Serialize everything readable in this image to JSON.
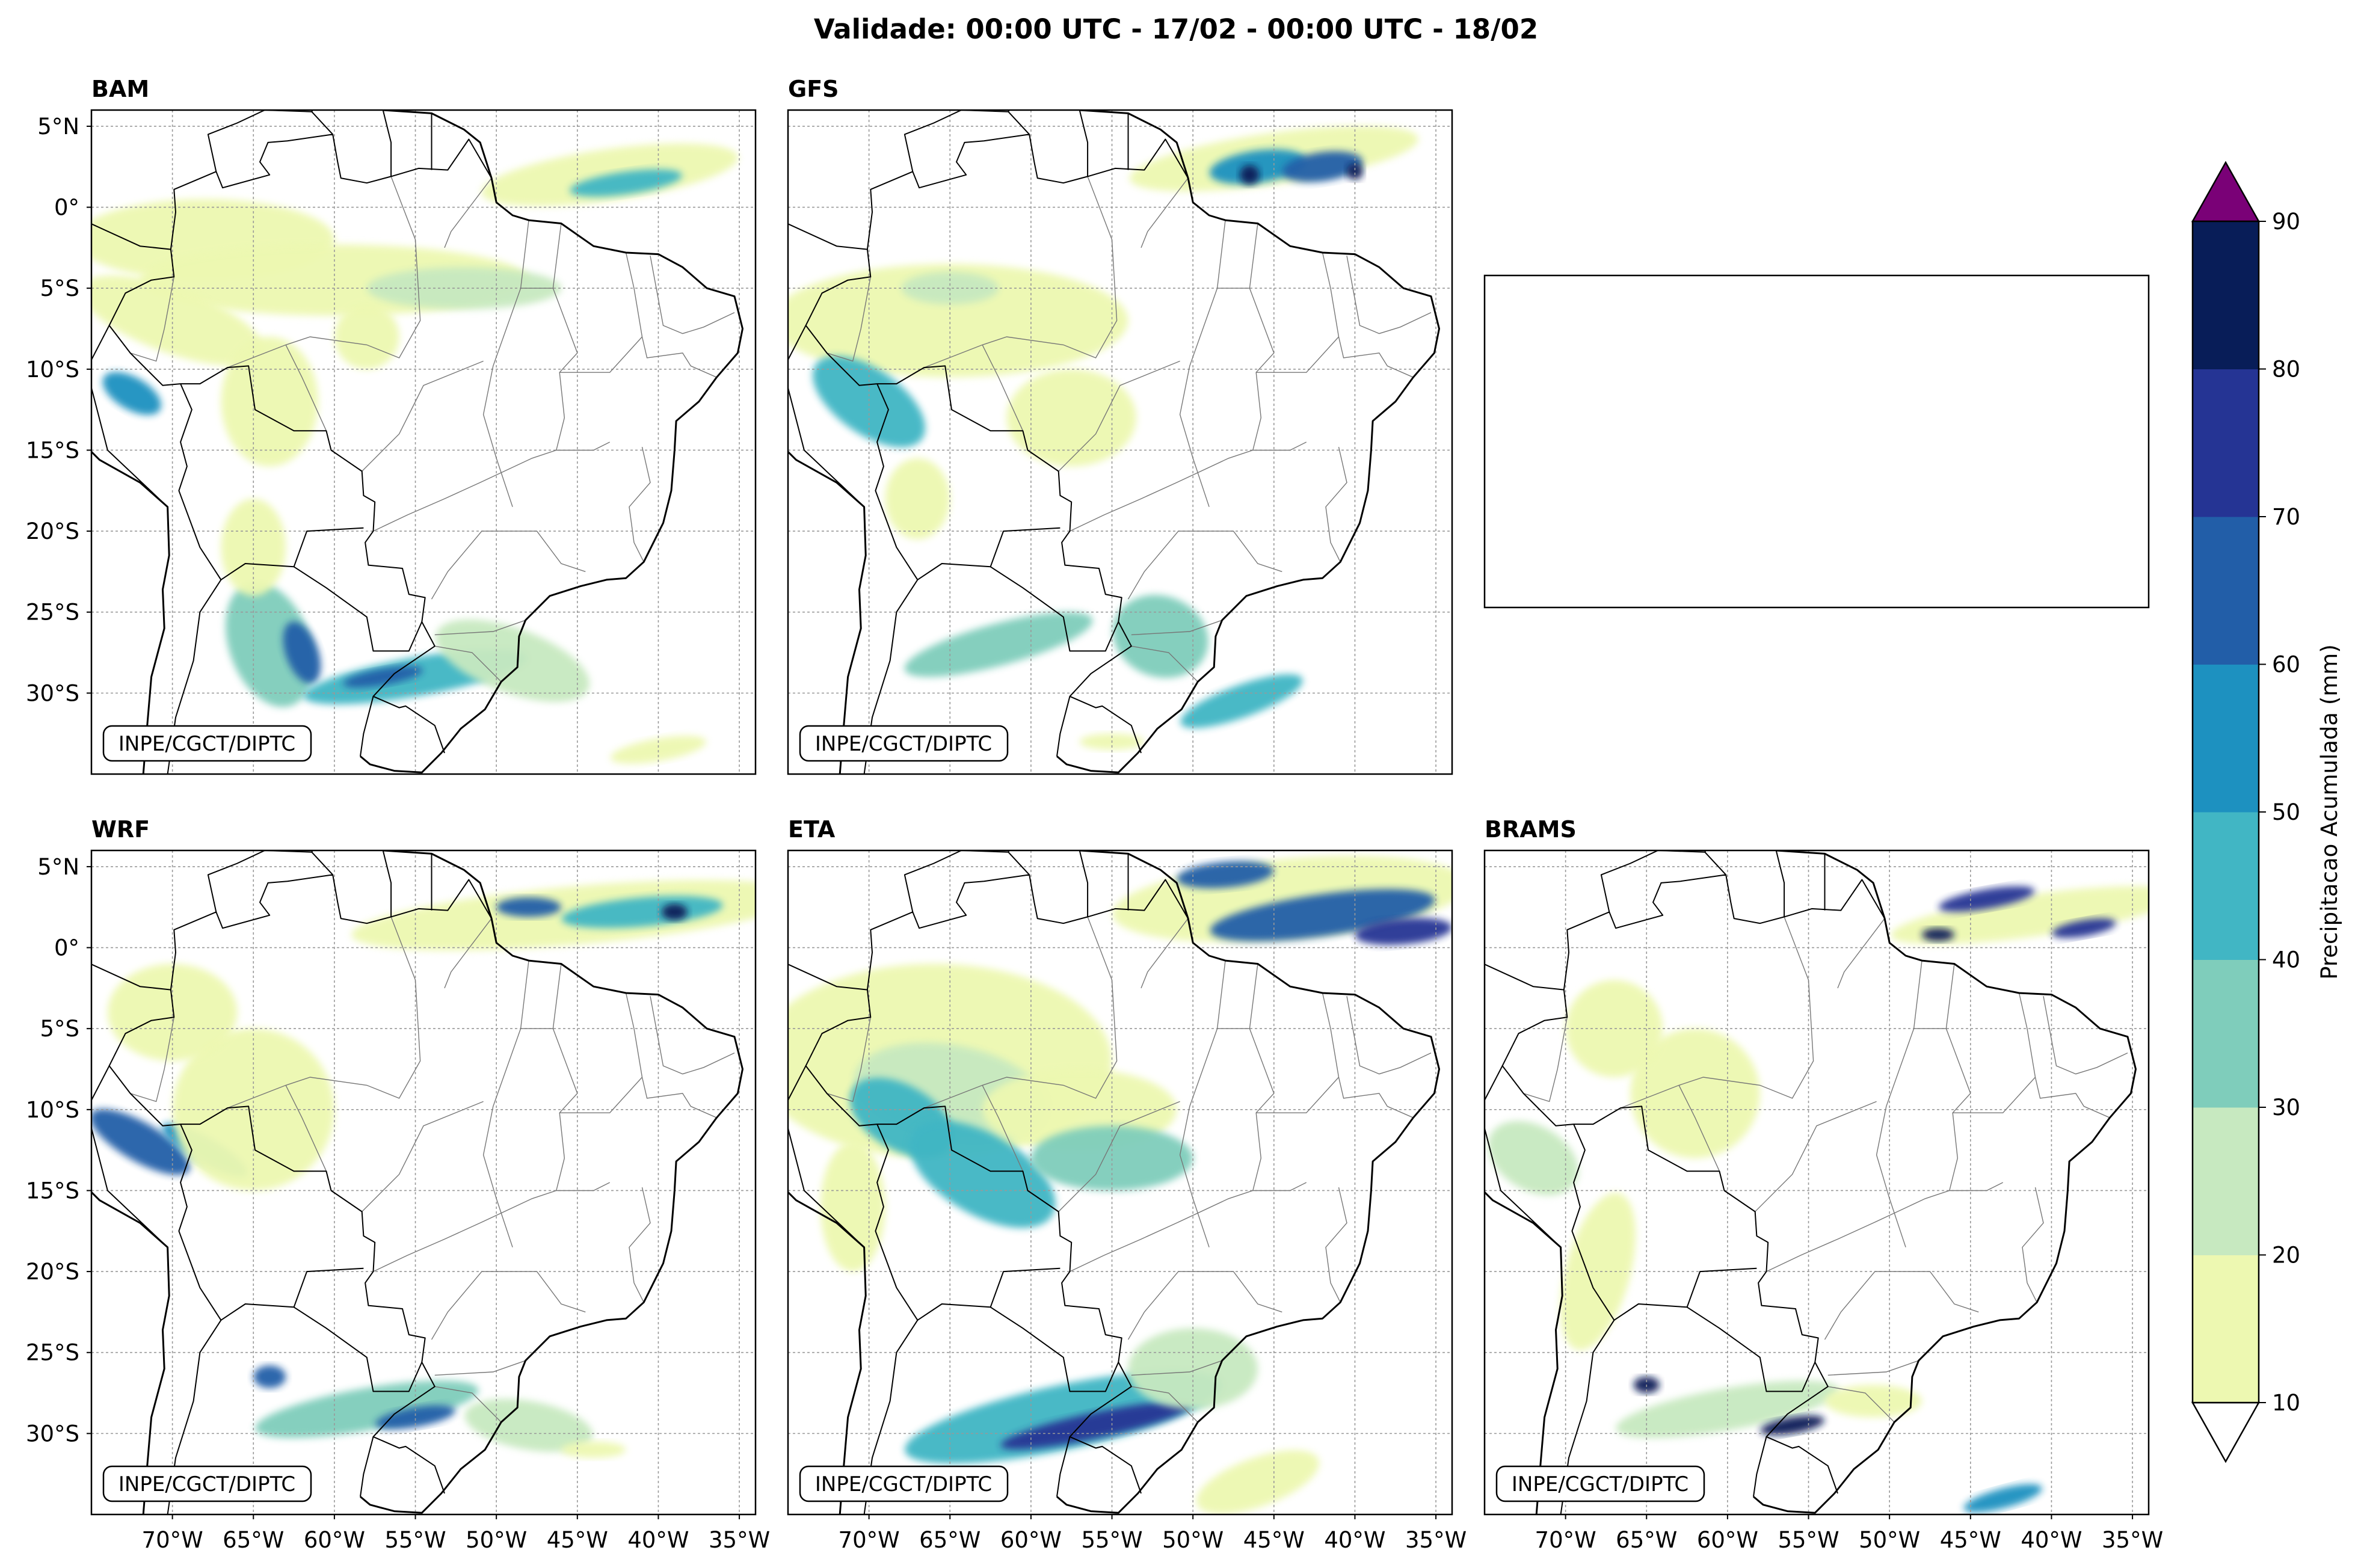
{
  "title": "Validade: 00:00 UTC - 17/02 - 00:00 UTC - 18/02",
  "credit": "INPE/CGCT/DIPTC",
  "panels": [
    {
      "id": "bam",
      "label": "BAM",
      "row": 0,
      "col": 0,
      "empty": false
    },
    {
      "id": "gfs",
      "label": "GFS",
      "row": 0,
      "col": 1,
      "empty": false
    },
    {
      "id": "empty",
      "label": "",
      "row": 0,
      "col": 2,
      "empty": true
    },
    {
      "id": "wrf",
      "label": "WRF",
      "row": 1,
      "col": 0,
      "empty": false
    },
    {
      "id": "eta",
      "label": "ETA",
      "row": 1,
      "col": 1,
      "empty": false
    },
    {
      "id": "brams",
      "label": "BRAMS",
      "row": 1,
      "col": 2,
      "empty": false
    }
  ],
  "axes": {
    "lat_labels": [
      "5°N",
      "0°",
      "5°S",
      "10°S",
      "15°S",
      "20°S",
      "25°S",
      "30°S"
    ],
    "lat_values": [
      5,
      0,
      -5,
      -10,
      -15,
      -20,
      -25,
      -30
    ],
    "lon_labels": [
      "70°W",
      "65°W",
      "60°W",
      "55°W",
      "50°W",
      "45°W",
      "40°W",
      "35°W"
    ],
    "lon_values": [
      -70,
      -65,
      -60,
      -55,
      -50,
      -45,
      -40,
      -35
    ],
    "lon_range": [
      -75,
      -34
    ],
    "lat_range": [
      -35,
      6
    ]
  },
  "colorbar": {
    "label": "Precipitacao Acumulada (mm)",
    "ticks": [
      "10",
      "20",
      "30",
      "40",
      "50",
      "60",
      "70",
      "80",
      "90"
    ],
    "levels": [
      10,
      20,
      30,
      40,
      50,
      60,
      70,
      80,
      90
    ],
    "colors": [
      "#edf8b1",
      "#c7e9c0",
      "#7fcdbb",
      "#41b6c4",
      "#1d91c0",
      "#225ea8",
      "#253494",
      "#081d58"
    ],
    "over_color": "#7a0177",
    "under_color": "#ffffff"
  }
}
